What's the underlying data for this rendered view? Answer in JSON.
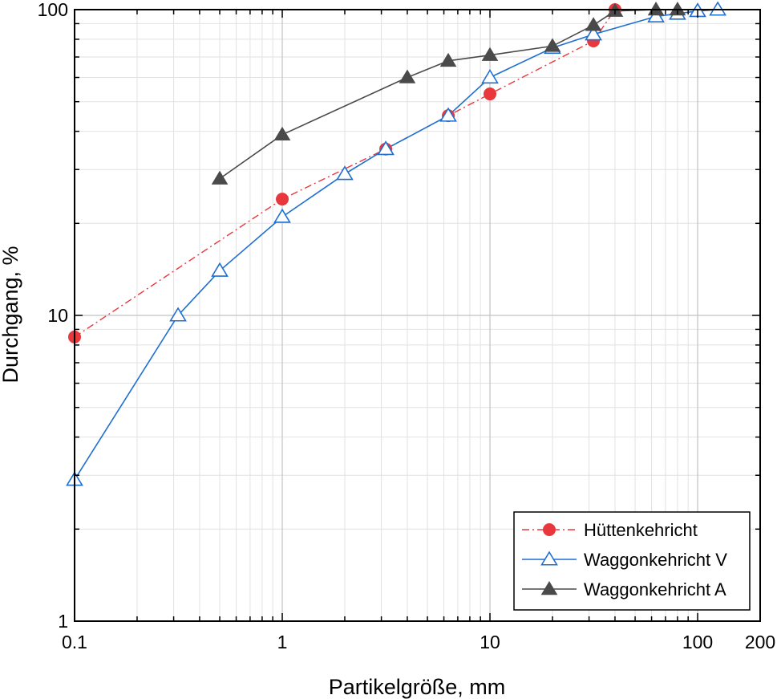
{
  "chart_data": {
    "type": "line",
    "xlabel": "Partikelgröße, mm",
    "ylabel": "Durchgang, %",
    "xscale": "log",
    "yscale": "log",
    "xlim": [
      0.1,
      200
    ],
    "ylim": [
      1,
      100
    ],
    "x_ticks": [
      0.1,
      1,
      10,
      100,
      200
    ],
    "x_tick_labels": [
      "0.1",
      "1",
      "10",
      "100",
      "200"
    ],
    "y_ticks": [
      1,
      10,
      100
    ],
    "y_tick_labels": [
      "1",
      "10",
      "100"
    ],
    "grid": true,
    "legend_position": "bottom-right",
    "series": [
      {
        "name": "Hüttenkehricht",
        "color": "#e8383d",
        "line_style": "dash-dot",
        "marker": "filled-circle",
        "x": [
          0.1,
          1,
          3.15,
          6.3,
          10,
          31.5,
          40
        ],
        "y": [
          8.5,
          24,
          35,
          45,
          53,
          79,
          100
        ]
      },
      {
        "name": "Waggonkehricht V",
        "color": "#1f6fd1",
        "line_style": "solid",
        "marker": "open-triangle",
        "x": [
          0.1,
          0.315,
          0.5,
          1,
          2,
          3.15,
          6.3,
          10,
          20,
          31.5,
          63,
          80,
          100,
          125
        ],
        "y": [
          2.9,
          10,
          14,
          21,
          29,
          35,
          45,
          60,
          75,
          83,
          95,
          97,
          99,
          100
        ]
      },
      {
        "name": "Waggonkehricht A",
        "color": "#4a4a4a",
        "line_style": "solid",
        "marker": "filled-triangle",
        "x": [
          0.5,
          1,
          4,
          6.3,
          10,
          20,
          31.5,
          40,
          63,
          80
        ],
        "y": [
          28,
          39,
          60,
          68,
          71,
          76,
          89,
          99,
          100,
          100
        ]
      }
    ]
  }
}
